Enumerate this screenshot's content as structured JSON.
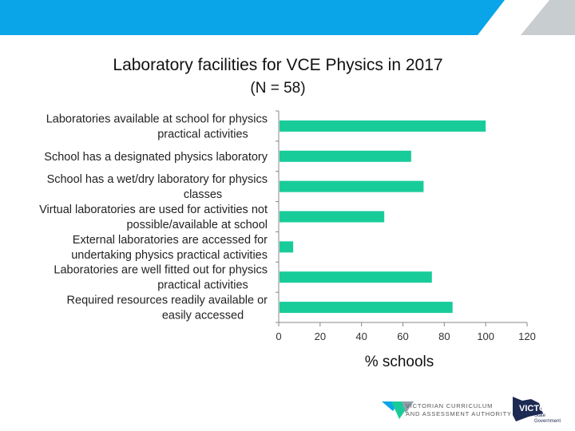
{
  "chart_data": {
    "type": "bar",
    "orientation": "horizontal",
    "title": "Laboratory facilities for VCE Physics in 2017",
    "subtitle": "(N = 58)",
    "xlabel": "% schools",
    "xlim": [
      0,
      120
    ],
    "xticks": [
      "0",
      "20",
      "40",
      "60",
      "80",
      "100",
      "120"
    ],
    "grid": false,
    "bar_color": "#18cc9a",
    "categories": [
      [
        "Laboratories available at  school for physics",
        "practical activities"
      ],
      [
        "School has a designated physics laboratory"
      ],
      [
        "School has a wet/dry laboratory for physics",
        "classes"
      ],
      [
        "Virtual laboratories are used for activities not",
        "possible/available at school"
      ],
      [
        "External laboratories are accessed for",
        "undertaking physics practical activities"
      ],
      [
        "Laboratories are well fitted out for physics",
        "practical activities"
      ],
      [
        "Required resources readily available or",
        "easily accessed"
      ]
    ],
    "values": [
      100,
      64,
      70,
      51,
      7,
      74,
      84
    ]
  },
  "colors": {
    "banner_blue": "#0aa5e8",
    "banner_grey": "#c8cdd0",
    "bar": "#18cc9a"
  },
  "footer": {
    "vcaa_line1": "VICTORIAN CURRICULUM",
    "vcaa_line2": "AND ASSESSMENT AUTHORITY",
    "vic_word": "VICTORIA",
    "vic_sub1": "State",
    "vic_sub2": "Government",
    "vcaa_icon": "vcaa-logo-icon",
    "vic_icon": "victoria-map-icon"
  }
}
